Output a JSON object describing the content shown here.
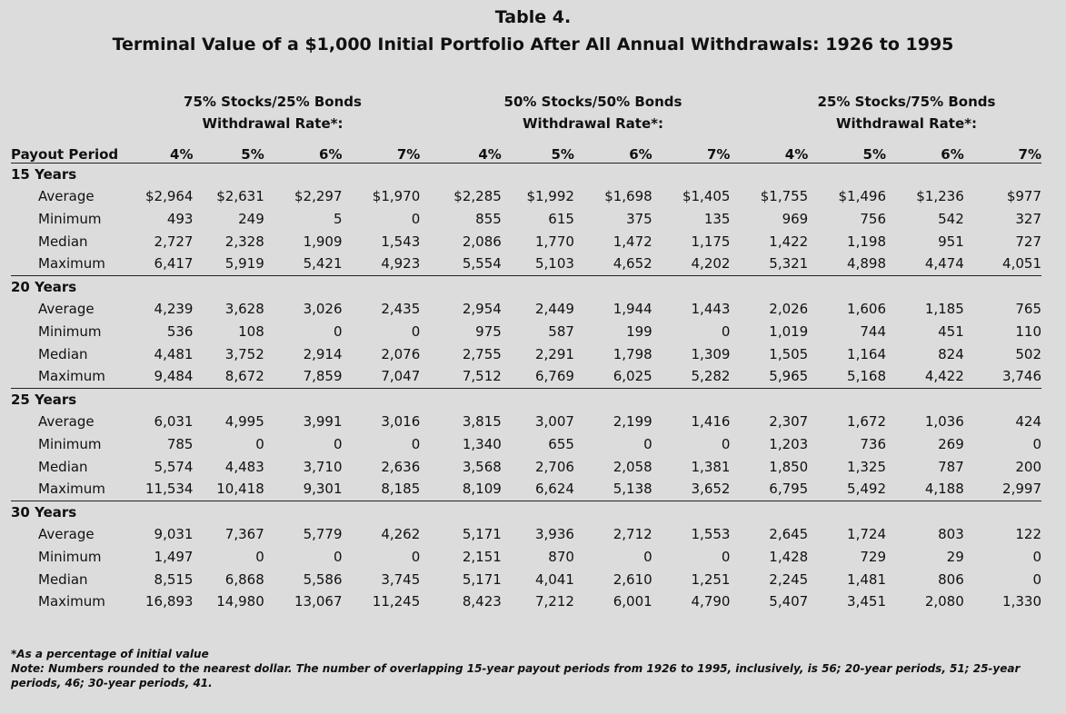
{
  "title": "Table 4.",
  "subtitle": "Terminal Value of a $1,000 Initial Portfolio After All Annual Withdrawals: 1926 to 1995",
  "groups": [
    {
      "name": "75% Stocks/25% Bonds",
      "sub": "Withdrawal Rate*:"
    },
    {
      "name": "50% Stocks/50% Bonds",
      "sub": "Withdrawal Rate*:"
    },
    {
      "name": "25% Stocks/75% Bonds",
      "sub": "Withdrawal Rate*:"
    }
  ],
  "header_first": "Payout Period",
  "rates": [
    "4%",
    "5%",
    "6%",
    "7%"
  ],
  "sections": [
    {
      "label": "15 Years",
      "rows": [
        {
          "label": "Average",
          "values": [
            "$2,964",
            "$2,631",
            "$2,297",
            "$1,970",
            "$2,285",
            "$1,992",
            "$1,698",
            "$1,405",
            "$1,755",
            "$1,496",
            "$1,236",
            "$977"
          ]
        },
        {
          "label": "Minimum",
          "values": [
            "493",
            "249",
            "5",
            "0",
            "855",
            "615",
            "375",
            "135",
            "969",
            "756",
            "542",
            "327"
          ]
        },
        {
          "label": "Median",
          "values": [
            "2,727",
            "2,328",
            "1,909",
            "1,543",
            "2,086",
            "1,770",
            "1,472",
            "1,175",
            "1,422",
            "1,198",
            "951",
            "727"
          ]
        },
        {
          "label": "Maximum",
          "values": [
            "6,417",
            "5,919",
            "5,421",
            "4,923",
            "5,554",
            "5,103",
            "4,652",
            "4,202",
            "5,321",
            "4,898",
            "4,474",
            "4,051"
          ]
        }
      ]
    },
    {
      "label": "20 Years",
      "rows": [
        {
          "label": "Average",
          "values": [
            "4,239",
            "3,628",
            "3,026",
            "2,435",
            "2,954",
            "2,449",
            "1,944",
            "1,443",
            "2,026",
            "1,606",
            "1,185",
            "765"
          ]
        },
        {
          "label": "Minimum",
          "values": [
            "536",
            "108",
            "0",
            "0",
            "975",
            "587",
            "199",
            "0",
            "1,019",
            "744",
            "451",
            "110"
          ]
        },
        {
          "label": "Median",
          "values": [
            "4,481",
            "3,752",
            "2,914",
            "2,076",
            "2,755",
            "2,291",
            "1,798",
            "1,309",
            "1,505",
            "1,164",
            "824",
            "502"
          ]
        },
        {
          "label": "Maximum",
          "values": [
            "9,484",
            "8,672",
            "7,859",
            "7,047",
            "7,512",
            "6,769",
            "6,025",
            "5,282",
            "5,965",
            "5,168",
            "4,422",
            "3,746"
          ]
        }
      ]
    },
    {
      "label": "25 Years",
      "rows": [
        {
          "label": "Average",
          "values": [
            "6,031",
            "4,995",
            "3,991",
            "3,016",
            "3,815",
            "3,007",
            "2,199",
            "1,416",
            "2,307",
            "1,672",
            "1,036",
            "424"
          ]
        },
        {
          "label": "Minimum",
          "values": [
            "785",
            "0",
            "0",
            "0",
            "1,340",
            "655",
            "0",
            "0",
            "1,203",
            "736",
            "269",
            "0"
          ]
        },
        {
          "label": "Median",
          "values": [
            "5,574",
            "4,483",
            "3,710",
            "2,636",
            "3,568",
            "2,706",
            "2,058",
            "1,381",
            "1,850",
            "1,325",
            "787",
            "200"
          ]
        },
        {
          "label": "Maximum",
          "values": [
            "11,534",
            "10,418",
            "9,301",
            "8,185",
            "8,109",
            "6,624",
            "5,138",
            "3,652",
            "6,795",
            "5,492",
            "4,188",
            "2,997"
          ]
        }
      ]
    },
    {
      "label": "30 Years",
      "rows": [
        {
          "label": "Average",
          "values": [
            "9,031",
            "7,367",
            "5,779",
            "4,262",
            "5,171",
            "3,936",
            "2,712",
            "1,553",
            "2,645",
            "1,724",
            "803",
            "122"
          ]
        },
        {
          "label": "Minimum",
          "values": [
            "1,497",
            "0",
            "0",
            "0",
            "2,151",
            "870",
            "0",
            "0",
            "1,428",
            "729",
            "29",
            "0"
          ]
        },
        {
          "label": "Median",
          "values": [
            "8,515",
            "6,868",
            "5,586",
            "3,745",
            "5,171",
            "4,041",
            "2,610",
            "1,251",
            "2,245",
            "1,481",
            "806",
            "0"
          ]
        },
        {
          "label": "Maximum",
          "values": [
            "16,893",
            "14,980",
            "13,067",
            "11,245",
            "8,423",
            "7,212",
            "6,001",
            "4,790",
            "5,407",
            "3,451",
            "2,080",
            "1,330"
          ]
        }
      ]
    }
  ],
  "footnote1": "*As a percentage of initial value",
  "footnote2": "Note: Numbers rounded to the nearest dollar. The number of overlapping 15-year payout periods from 1926 to 1995, inclusively, is 56; 20-year periods, 51; 25-year periods, 46; 30-year periods, 41."
}
